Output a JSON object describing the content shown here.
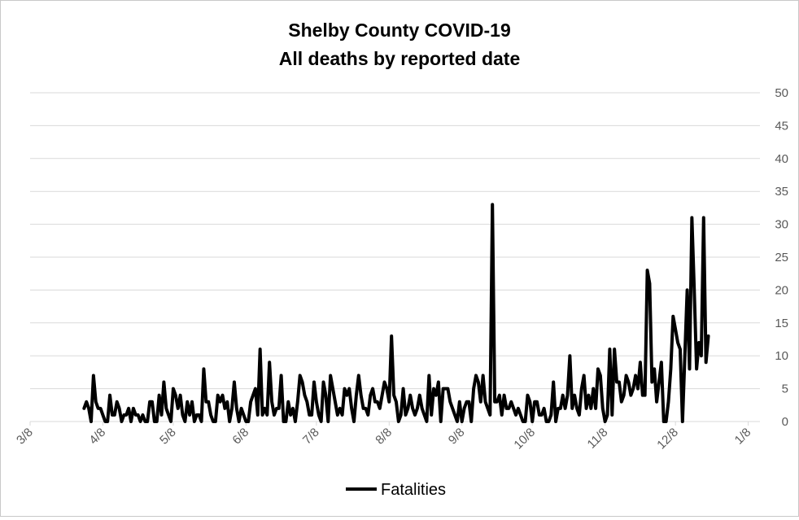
{
  "chart_data": {
    "type": "line",
    "title": "Shelby County COVID-19",
    "subtitle": "All deaths by reported date",
    "xlabel": "",
    "ylabel": "",
    "x_ticks": [
      "3/8",
      "4/8",
      "5/8",
      "6/8",
      "7/8",
      "8/8",
      "9/8",
      "10/8",
      "11/8",
      "12/8",
      "1/8"
    ],
    "x_start": "2020-03-08",
    "x_end": "2021-01-13",
    "ylim": [
      0,
      50
    ],
    "y_ticks": [
      0,
      5,
      10,
      15,
      20,
      25,
      30,
      35,
      40,
      45,
      50
    ],
    "y_axis_position": "right",
    "grid": true,
    "legend_position": "bottom",
    "series": [
      {
        "name": "Fatalities",
        "color": "#000000",
        "start_date": "2020-03-31",
        "values": [
          2,
          3,
          2,
          0,
          7,
          3,
          2,
          2,
          1,
          0,
          0,
          4,
          1,
          1,
          3,
          2,
          0,
          1,
          1,
          2,
          0,
          2,
          1,
          1,
          0,
          1,
          0,
          0,
          3,
          3,
          0,
          0,
          4,
          1,
          6,
          2,
          1,
          0,
          5,
          4,
          2,
          4,
          1,
          0,
          3,
          1,
          3,
          0,
          1,
          1,
          0,
          8,
          3,
          3,
          1,
          0,
          0,
          4,
          3,
          4,
          2,
          3,
          0,
          2,
          6,
          2,
          0,
          2,
          1,
          0,
          0,
          3,
          4,
          5,
          1,
          11,
          1,
          2,
          1,
          9,
          3,
          1,
          2,
          2,
          7,
          0,
          0,
          3,
          1,
          2,
          0,
          3,
          7,
          6,
          4,
          3,
          1,
          1,
          6,
          3,
          1,
          0,
          6,
          4,
          0,
          7,
          5,
          3,
          1,
          2,
          1,
          5,
          4,
          5,
          2,
          0,
          4,
          7,
          4,
          2,
          2,
          1,
          4,
          5,
          3,
          3,
          2,
          4,
          6,
          5,
          3,
          13,
          4,
          3,
          0,
          1,
          5,
          1,
          2,
          4,
          2,
          1,
          2,
          4,
          2,
          1,
          0,
          7,
          1,
          5,
          4,
          6,
          0,
          5,
          5,
          5,
          3,
          2,
          1,
          0,
          3,
          0,
          2,
          3,
          3,
          0,
          5,
          7,
          6,
          3,
          7,
          3,
          2,
          1,
          33,
          3,
          3,
          4,
          1,
          4,
          2,
          2,
          3,
          2,
          1,
          2,
          1,
          0,
          0,
          4,
          3,
          0,
          3,
          3,
          1,
          1,
          2,
          0,
          0,
          1,
          6,
          0,
          2,
          2,
          4,
          2,
          4,
          10,
          2,
          4,
          2,
          1,
          5,
          7,
          2,
          4,
          2,
          5,
          2,
          8,
          7,
          2,
          0,
          1,
          11,
          1,
          11,
          6,
          6,
          3,
          4,
          7,
          6,
          4,
          5,
          7,
          5,
          9,
          4,
          4,
          23,
          21,
          6,
          8,
          3,
          6,
          9,
          0,
          0,
          3,
          8,
          16,
          14,
          12,
          11,
          0,
          10,
          20,
          8,
          31,
          20,
          8,
          12,
          10,
          31,
          9,
          13
        ]
      }
    ]
  }
}
